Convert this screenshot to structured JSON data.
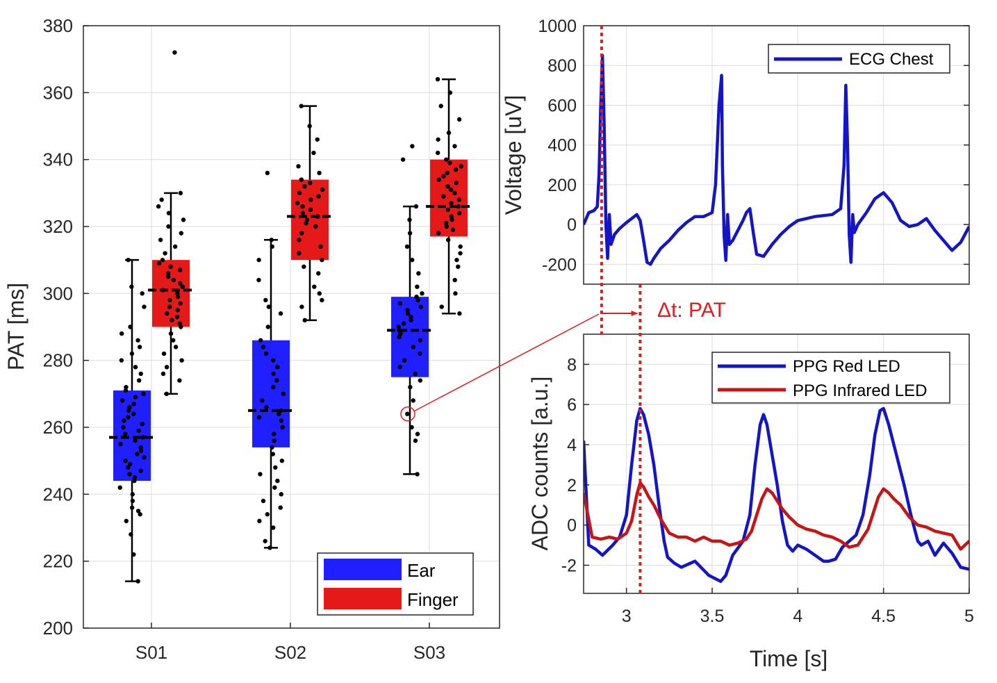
{
  "chart_data": [
    {
      "type": "box",
      "id": "pat-boxplot",
      "ylabel": "PAT [ms]",
      "ylim": [
        200,
        380
      ],
      "yticks": [
        "200",
        "220",
        "240",
        "260",
        "280",
        "300",
        "320",
        "340",
        "360",
        "380"
      ],
      "categories": [
        "S01",
        "S02",
        "S03"
      ],
      "grid": true,
      "legend": {
        "position": "bottom-right",
        "entries": [
          {
            "label": "Ear",
            "color": "#1f1fff"
          },
          {
            "label": "Finger",
            "color": "#e61919"
          }
        ]
      },
      "series": [
        {
          "name": "Ear",
          "color": "#1f1fff",
          "boxes": [
            {
              "category": "S01",
              "whisker_low": 214,
              "q1": 244,
              "median": 257,
              "q3": 271,
              "whisker_high": 310,
              "points": [
                214,
                222,
                228,
                232,
                234,
                235,
                236,
                238,
                240,
                242,
                244,
                245,
                246,
                247,
                248,
                249,
                250,
                251,
                252,
                253,
                254,
                255,
                256,
                257,
                258,
                259,
                260,
                261,
                262,
                263,
                264,
                265,
                266,
                267,
                268,
                269,
                270,
                271,
                272,
                274,
                276,
                278,
                280,
                282,
                284,
                286,
                288,
                290,
                296,
                300,
                302,
                310
              ]
            },
            {
              "category": "S02",
              "whisker_low": 224,
              "q1": 254,
              "median": 265,
              "q3": 286,
              "whisker_high": 316,
              "points": [
                224,
                226,
                230,
                232,
                234,
                236,
                238,
                240,
                242,
                244,
                246,
                248,
                250,
                252,
                254,
                256,
                258,
                260,
                262,
                263,
                264,
                265,
                266,
                268,
                270,
                272,
                274,
                276,
                278,
                280,
                282,
                284,
                286,
                290,
                294,
                296,
                298,
                304,
                310,
                314,
                316,
                336
              ]
            },
            {
              "category": "S03",
              "whisker_low": 246,
              "q1": 275,
              "median": 289,
              "q3": 299,
              "whisker_high": 326,
              "points": [
                246,
                256,
                258,
                260,
                264,
                268,
                272,
                274,
                276,
                278,
                280,
                282,
                284,
                286,
                287,
                288,
                289,
                290,
                291,
                292,
                293,
                294,
                295,
                296,
                297,
                298,
                299,
                300,
                302,
                306,
                310,
                314,
                318,
                322,
                326,
                340,
                344
              ]
            }
          ]
        },
        {
          "name": "Finger",
          "color": "#e61919",
          "boxes": [
            {
              "category": "S01",
              "whisker_low": 270,
              "q1": 290,
              "median": 301,
              "q3": 310,
              "whisker_high": 330,
              "points": [
                270,
                274,
                276,
                278,
                280,
                282,
                284,
                286,
                288,
                290,
                291,
                292,
                293,
                294,
                295,
                296,
                297,
                298,
                299,
                300,
                301,
                302,
                303,
                304,
                305,
                306,
                307,
                308,
                309,
                310,
                312,
                314,
                316,
                318,
                320,
                322,
                324,
                326,
                328,
                330,
                372
              ]
            },
            {
              "category": "S02",
              "whisker_low": 292,
              "q1": 310,
              "median": 323,
              "q3": 334,
              "whisker_high": 356,
              "points": [
                292,
                296,
                298,
                300,
                302,
                306,
                308,
                310,
                312,
                314,
                316,
                318,
                320,
                321,
                322,
                323,
                324,
                325,
                326,
                327,
                328,
                329,
                330,
                331,
                332,
                333,
                334,
                336,
                338,
                342,
                346,
                350,
                356
              ]
            },
            {
              "category": "S03",
              "whisker_low": 294,
              "q1": 317,
              "median": 326,
              "q3": 340,
              "whisker_high": 364,
              "points": [
                294,
                296,
                300,
                304,
                308,
                310,
                312,
                314,
                316,
                318,
                319,
                320,
                321,
                322,
                323,
                324,
                325,
                326,
                327,
                328,
                329,
                330,
                331,
                332,
                333,
                334,
                335,
                336,
                337,
                338,
                339,
                340,
                342,
                344,
                346,
                348,
                352,
                356,
                360,
                364
              ]
            }
          ]
        }
      ]
    },
    {
      "type": "line",
      "id": "ecg-panel",
      "ylabel": "Voltage [uV]",
      "xlim": [
        2.75,
        5
      ],
      "ylim": [
        -300,
        1000
      ],
      "yticks": [
        "-200",
        "0",
        "200",
        "400",
        "600",
        "800",
        "1000"
      ],
      "grid": true,
      "legend": {
        "position": "top-right",
        "entries": [
          {
            "label": "ECG Chest",
            "color": "#1414c8"
          }
        ]
      },
      "series": [
        {
          "name": "ECG Chest",
          "color": "#1414c8",
          "x": [
            2.75,
            2.78,
            2.81,
            2.83,
            2.84,
            2.85,
            2.86,
            2.87,
            2.88,
            2.89,
            2.9,
            2.91,
            2.93,
            2.96,
            3.0,
            3.03,
            3.06,
            3.08,
            3.1,
            3.12,
            3.14,
            3.16,
            3.2,
            3.25,
            3.3,
            3.35,
            3.4,
            3.45,
            3.5,
            3.52,
            3.54,
            3.555,
            3.56,
            3.57,
            3.58,
            3.59,
            3.6,
            3.62,
            3.65,
            3.68,
            3.7,
            3.72,
            3.74,
            3.76,
            3.8,
            3.85,
            3.9,
            3.95,
            4.0,
            4.05,
            4.1,
            4.2,
            4.25,
            4.27,
            4.28,
            4.29,
            4.3,
            4.31,
            4.32,
            4.33,
            4.35,
            4.4,
            4.45,
            4.5,
            4.55,
            4.6,
            4.65,
            4.7,
            4.75,
            4.8,
            4.85,
            4.9,
            4.95,
            5.0
          ],
          "y": [
            0,
            60,
            70,
            90,
            250,
            600,
            850,
            500,
            0,
            -170,
            50,
            -100,
            -50,
            -20,
            10,
            30,
            50,
            20,
            -80,
            -190,
            -200,
            -170,
            -120,
            -80,
            -30,
            10,
            40,
            40,
            60,
            200,
            600,
            750,
            300,
            -60,
            -180,
            50,
            -100,
            -80,
            -30,
            20,
            60,
            80,
            -40,
            -150,
            -160,
            -100,
            -50,
            -10,
            20,
            30,
            40,
            50,
            80,
            300,
            700,
            400,
            -50,
            -190,
            50,
            -40,
            0,
            60,
            130,
            160,
            110,
            20,
            -10,
            0,
            30,
            -30,
            -80,
            -130,
            -90,
            -10
          ]
        }
      ]
    },
    {
      "type": "line",
      "id": "ppg-panel",
      "xlabel": "Time [s]",
      "ylabel": "ADC counts [a.u.]",
      "xlim": [
        2.75,
        5
      ],
      "ylim": [
        -3.4,
        9.5
      ],
      "xticks": [
        "3",
        "3.5",
        "4",
        "4.5",
        "5"
      ],
      "yticks": [
        "-2",
        "0",
        "2",
        "4",
        "6",
        "8"
      ],
      "grid": true,
      "legend": {
        "position": "top-right",
        "entries": [
          {
            "label": "PPG Red LED",
            "color": "#1414c8"
          },
          {
            "label": "PPG Infrared LED",
            "color": "#c81414"
          }
        ]
      },
      "series": [
        {
          "name": "PPG Red LED",
          "color": "#1414c8",
          "x": [
            2.75,
            2.78,
            2.82,
            2.86,
            2.92,
            2.96,
            3.0,
            3.03,
            3.06,
            3.08,
            3.1,
            3.13,
            3.16,
            3.19,
            3.22,
            3.24,
            3.28,
            3.32,
            3.4,
            3.48,
            3.55,
            3.58,
            3.62,
            3.68,
            3.72,
            3.75,
            3.78,
            3.8,
            3.82,
            3.85,
            3.88,
            3.91,
            3.94,
            3.97,
            4.0,
            4.05,
            4.1,
            4.15,
            4.18,
            4.22,
            4.26,
            4.3,
            4.34,
            4.38,
            4.42,
            4.45,
            4.48,
            4.5,
            4.53,
            4.56,
            4.59,
            4.62,
            4.66,
            4.7,
            4.72,
            4.76,
            4.8,
            4.85,
            4.9,
            4.95,
            5.0
          ],
          "y": [
            4.2,
            -1.0,
            -1.2,
            -1.5,
            -1.0,
            -0.6,
            0.5,
            3.0,
            5.2,
            5.8,
            5.5,
            4.5,
            3.0,
            1.0,
            -0.8,
            -1.6,
            -1.9,
            -2.1,
            -1.8,
            -2.5,
            -2.8,
            -2.5,
            -1.5,
            -0.8,
            0.5,
            3.0,
            5.0,
            5.5,
            5.0,
            3.5,
            2.0,
            0.2,
            -1.0,
            -1.3,
            -1.0,
            -1.2,
            -1.5,
            -1.8,
            -1.8,
            -1.7,
            -1.1,
            -0.8,
            -0.5,
            0.5,
            2.5,
            4.5,
            5.7,
            5.8,
            5.0,
            4.0,
            3.0,
            2.0,
            0.5,
            -0.8,
            -1.0,
            -0.8,
            -1.5,
            -0.9,
            -1.4,
            -2.1,
            -2.2
          ]
        },
        {
          "name": "PPG Infrared LED",
          "color": "#c81414",
          "x": [
            2.75,
            2.8,
            2.85,
            2.9,
            2.95,
            3.0,
            3.03,
            3.06,
            3.08,
            3.1,
            3.13,
            3.16,
            3.2,
            3.25,
            3.3,
            3.35,
            3.4,
            3.45,
            3.5,
            3.55,
            3.6,
            3.65,
            3.7,
            3.73,
            3.76,
            3.79,
            3.82,
            3.85,
            3.88,
            3.91,
            3.95,
            4.0,
            4.05,
            4.1,
            4.15,
            4.2,
            4.25,
            4.3,
            4.35,
            4.38,
            4.41,
            4.44,
            4.47,
            4.5,
            4.53,
            4.56,
            4.6,
            4.65,
            4.7,
            4.75,
            4.8,
            4.85,
            4.9,
            4.95,
            5.0
          ],
          "y": [
            1.6,
            -0.6,
            -0.7,
            -0.6,
            -0.7,
            -0.4,
            0.2,
            1.5,
            2.1,
            1.9,
            1.4,
            1.0,
            0.3,
            -0.4,
            -0.6,
            -0.6,
            -0.8,
            -0.6,
            -0.8,
            -0.8,
            -1.0,
            -0.9,
            -0.7,
            -0.3,
            0.5,
            1.3,
            1.8,
            1.6,
            1.2,
            0.8,
            0.4,
            0.0,
            -0.2,
            -0.3,
            -0.5,
            -0.6,
            -0.8,
            -1.1,
            -1.0,
            -0.6,
            -0.2,
            0.6,
            1.4,
            1.8,
            1.6,
            1.3,
            1.0,
            0.4,
            0.0,
            -0.1,
            -0.3,
            -0.4,
            -0.5,
            -1.2,
            -0.8
          ]
        }
      ]
    }
  ],
  "annotations": {
    "delta_label": "Δt: PAT",
    "ecg_peak_time": 2.855,
    "ppg_peak_time": 3.08,
    "highlighted_point": {
      "category": "S03",
      "series": "Ear",
      "value": 264
    }
  }
}
